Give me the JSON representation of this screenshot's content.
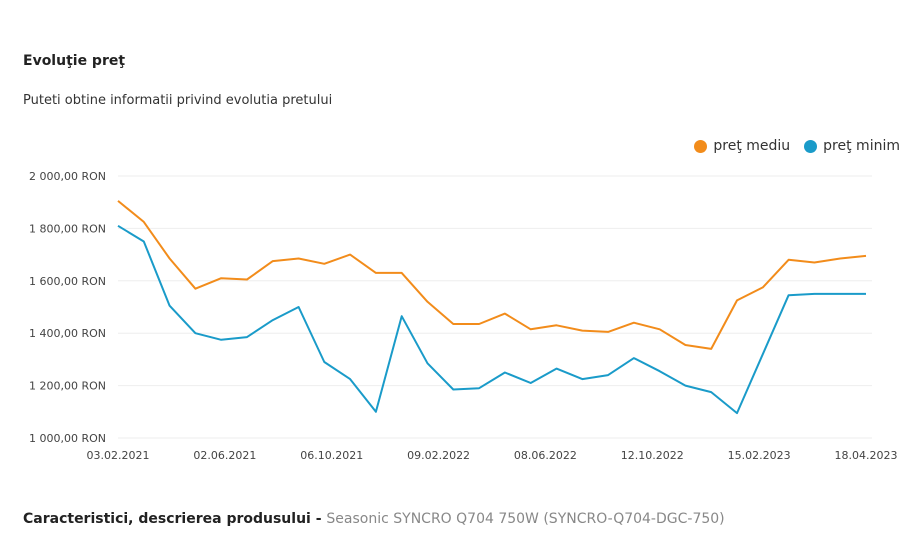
{
  "header": {
    "title": "Evoluţie preţ",
    "subtitle": "Puteti obtine informatii privind evolutia pretului"
  },
  "footer": {
    "heading": "Caracteristici, descrierea produsului - ",
    "product": "Seasonic SYNCRO Q704 750W (SYNCRO-Q704-DGC-750)"
  },
  "colors": {
    "series_mediu": "#f28c1b",
    "series_minim": "#1a9bc9",
    "grid": "#eeeeee"
  },
  "chart_data": {
    "type": "line",
    "ylim": [
      1000,
      2000
    ],
    "yticks": [
      1000,
      1200,
      1400,
      1600,
      1800,
      2000
    ],
    "ytick_labels": [
      "1 000,00 RON",
      "1 200,00 RON",
      "1 400,00 RON",
      "1 600,00 RON",
      "1 800,00 RON",
      "2 000,00 RON"
    ],
    "xtick_labels": [
      "03.02.2021",
      "02.06.2021",
      "06.10.2021",
      "09.02.2022",
      "08.06.2022",
      "12.10.2022",
      "15.02.2023",
      "18.04.2023"
    ],
    "legend_position": "top-right",
    "series": [
      {
        "name": "preţ mediu",
        "color": "#f28c1b",
        "values": [
          1905,
          1825,
          1685,
          1570,
          1610,
          1605,
          1675,
          1685,
          1665,
          1700,
          1630,
          1630,
          1520,
          1435,
          1435,
          1475,
          1415,
          1430,
          1410,
          1405,
          1440,
          1415,
          1355,
          1340,
          1525,
          1575,
          1680,
          1670,
          1685,
          1695
        ]
      },
      {
        "name": "preţ minim",
        "color": "#1a9bc9",
        "values": [
          1810,
          1750,
          1505,
          1400,
          1375,
          1385,
          1450,
          1500,
          1290,
          1225,
          1100,
          1465,
          1285,
          1185,
          1190,
          1250,
          1210,
          1265,
          1225,
          1240,
          1305,
          1255,
          1200,
          1175,
          1095,
          1320,
          1545,
          1550,
          1550,
          1550
        ]
      }
    ]
  }
}
